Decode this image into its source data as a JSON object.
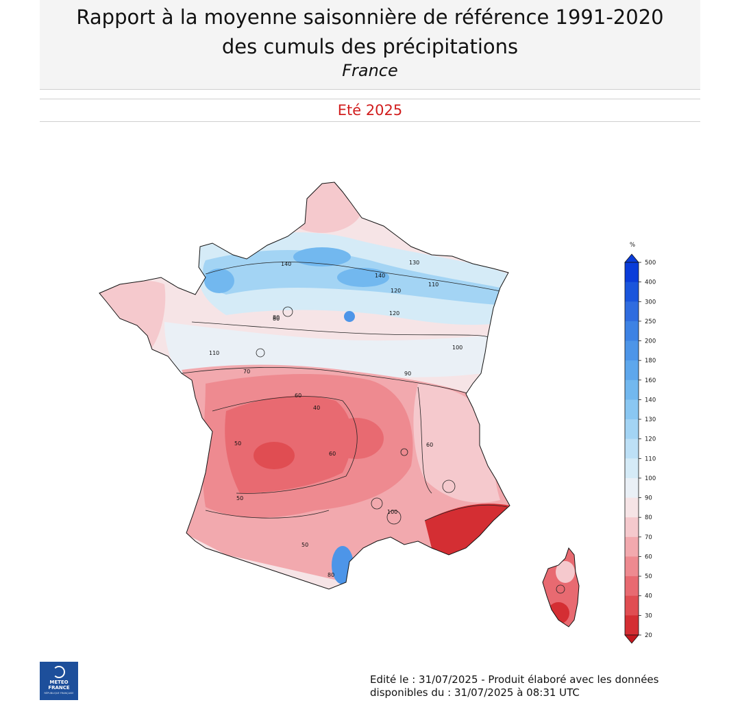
{
  "header": {
    "title_line1": "Rapport à la moyenne saisonnière de référence 1991-2020",
    "title_line2": "des cumuls des précipitations",
    "region": "France",
    "season": "Eté 2025"
  },
  "legend": {
    "unit": "%",
    "levels": [
      500,
      400,
      300,
      250,
      200,
      180,
      160,
      140,
      130,
      120,
      110,
      100,
      90,
      80,
      70,
      60,
      50,
      40,
      30,
      20
    ],
    "colors": [
      "#0a3cd9",
      "#1a55dc",
      "#2f6cdf",
      "#3d82e4",
      "#4d95e8",
      "#5ea7ec",
      "#72b8ef",
      "#8ac7f2",
      "#a3d4f4",
      "#bde0f6",
      "#d5ebf7",
      "#eaf0f6",
      "#f6e4e6",
      "#f5c9cd",
      "#f2a9ae",
      "#ee8a90",
      "#e86a71",
      "#e04d52",
      "#d42e33",
      "#c4181f"
    ]
  },
  "map": {
    "contour_labels": [
      "140",
      "130",
      "120",
      "110",
      "100",
      "90",
      "80",
      "70",
      "60",
      "50",
      "40",
      "140",
      "120",
      "110",
      "100",
      "80",
      "60",
      "50",
      "50",
      "60",
      "80"
    ]
  },
  "logo": {
    "line1": "METEO",
    "line2": "FRANCE",
    "sub": "RÉPUBLIQUE FRANÇAISE"
  },
  "footer": {
    "line1": "Edité le : 31/07/2025 - Produit élaboré avec les données",
    "line2": "disponibles du : 31/07/2025 à 08:31 UTC"
  }
}
